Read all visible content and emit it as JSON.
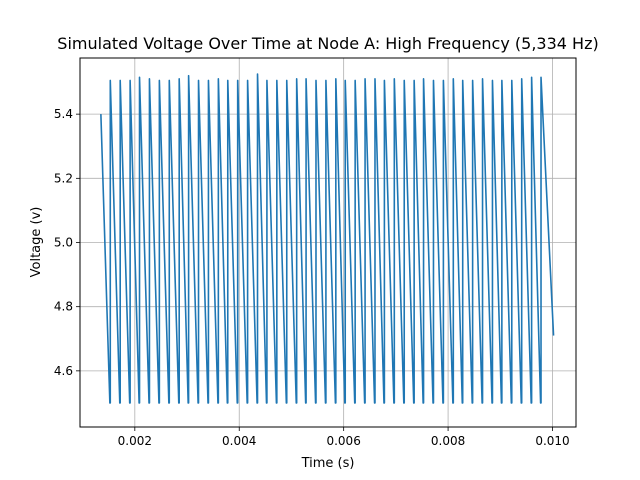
{
  "chart_data": {
    "type": "line",
    "title": "Simulated Voltage Over Time at Node A: High Frequency (5,334 Hz)",
    "xlabel": "Time (s)",
    "ylabel": "Voltage (v)",
    "xlim": [
      0.00095,
      0.01045
    ],
    "ylim": [
      4.425,
      5.575
    ],
    "x_ticks": [
      0.002,
      0.004,
      0.006,
      0.008,
      0.01
    ],
    "x_tick_labels": [
      "0.002",
      "0.004",
      "0.006",
      "0.008",
      "0.010"
    ],
    "y_ticks": [
      4.6,
      4.8,
      5.0,
      5.2,
      5.4
    ],
    "y_tick_labels": [
      "4.6",
      "4.8",
      "5.0",
      "5.2",
      "5.4"
    ],
    "grid": true,
    "line_color": "#1f77b4",
    "frequency_hz": 5334,
    "waveform": {
      "shape": "sawtooth",
      "peak_times": [
        0.00135,
        0.00153,
        0.00172,
        0.00191,
        0.00209,
        0.00228,
        0.00247,
        0.00266,
        0.00285,
        0.00303,
        0.00322,
        0.00341,
        0.0036,
        0.00378,
        0.00397,
        0.00416,
        0.00435,
        0.00453,
        0.00472,
        0.00491,
        0.0051,
        0.00528,
        0.00547,
        0.00566,
        0.00585,
        0.00603,
        0.00622,
        0.00641,
        0.0066,
        0.00678,
        0.00697,
        0.00716,
        0.00735,
        0.00753,
        0.00772,
        0.00791,
        0.0081,
        0.00828,
        0.00847,
        0.00866,
        0.00885,
        0.00903,
        0.00922,
        0.00941,
        0.0096,
        0.00978
      ],
      "peak_values": [
        5.505,
        5.505,
        5.505,
        5.505,
        5.515,
        5.51,
        5.505,
        5.505,
        5.51,
        5.52,
        5.505,
        5.505,
        5.51,
        5.505,
        5.505,
        5.505,
        5.525,
        5.505,
        5.505,
        5.505,
        5.51,
        5.51,
        5.505,
        5.505,
        5.51,
        5.505,
        5.505,
        5.51,
        5.51,
        5.505,
        5.51,
        5.505,
        5.505,
        5.51,
        5.505,
        5.505,
        5.51,
        5.505,
        5.505,
        5.51,
        5.505,
        5.505,
        5.505,
        5.51,
        5.515,
        5.515
      ],
      "start": {
        "x": 0.00135,
        "y": 5.4
      },
      "end": {
        "x": 0.01002,
        "y": 4.71
      },
      "trough_value": 4.5
    }
  }
}
